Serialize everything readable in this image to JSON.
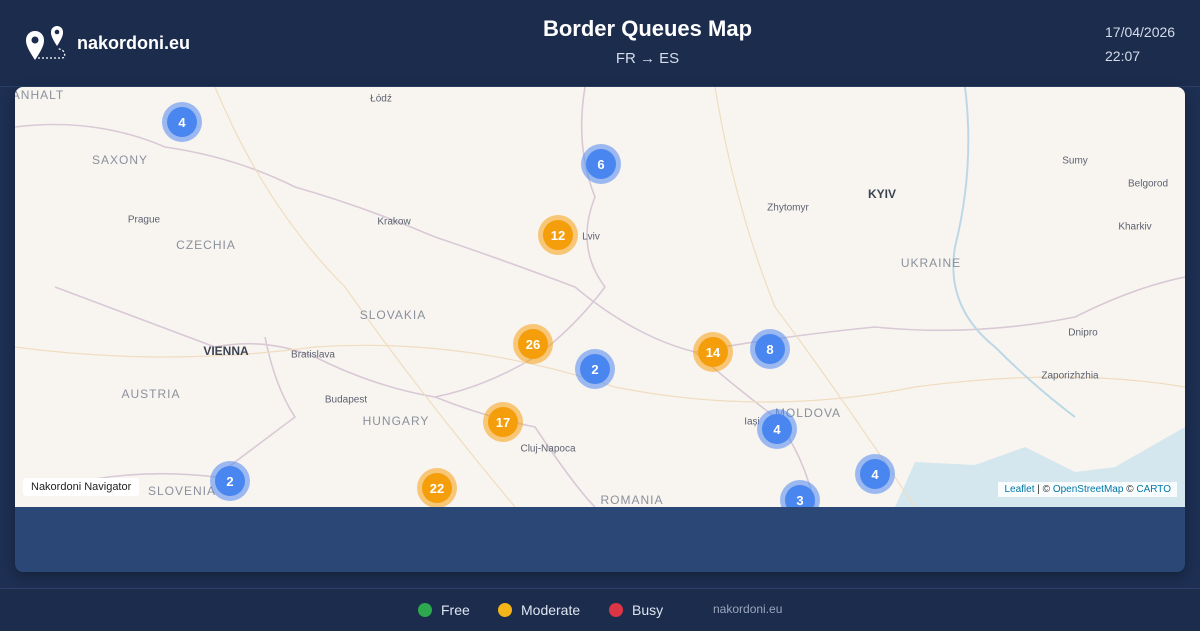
{
  "header": {
    "brand": "nakordoni.eu",
    "title": "Border Queues Map",
    "subtitle": "FR → ES",
    "date": "17/04/2026",
    "time": "22:07"
  },
  "map": {
    "places": [
      "ANHALT",
      "Łódź",
      "SAXONY",
      "Prague",
      "CZECHIA",
      "Krakow",
      "Lviv",
      "Zhytomyr",
      "KYIV",
      "Sumy",
      "Belgorod",
      "Kharkiv",
      "UKRAINE",
      "SLOVAKIA",
      "VIENNA",
      "Bratislava",
      "Dnipro",
      "AUSTRIA",
      "Budapest",
      "HUNGARY",
      "Zaporizhzhia",
      "Cluj-Napoca",
      "MOLDOVA",
      "Iași",
      "ROMANIA",
      "SLOVENIA"
    ],
    "clusters": [
      {
        "count": 4,
        "color": "#4a86f0"
      },
      {
        "count": 6,
        "color": "#4a86f0"
      },
      {
        "count": 12,
        "color": "#f59e0b"
      },
      {
        "count": 26,
        "color": "#f59e0b"
      },
      {
        "count": 2,
        "color": "#4a86f0"
      },
      {
        "count": 14,
        "color": "#f59e0b"
      },
      {
        "count": 8,
        "color": "#4a86f0"
      },
      {
        "count": 17,
        "color": "#f59e0b"
      },
      {
        "count": 4,
        "color": "#4a86f0"
      },
      {
        "count": 2,
        "color": "#4a86f0"
      },
      {
        "count": 22,
        "color": "#f59e0b"
      },
      {
        "count": 4,
        "color": "#4a86f0"
      },
      {
        "count": 3,
        "color": "#4a86f0"
      }
    ],
    "badge": "Nakordoni Navigator",
    "attribution": [
      "Leaflet",
      "| ©",
      "OpenStreetMap",
      "©",
      "CARTO"
    ]
  },
  "legend": [
    {
      "label": "Free",
      "color": "#2ea84f"
    },
    {
      "label": "Moderate",
      "color": "#f5b417"
    },
    {
      "label": "Busy",
      "color": "#dc3545"
    }
  ],
  "footer": "nakordoni.eu"
}
